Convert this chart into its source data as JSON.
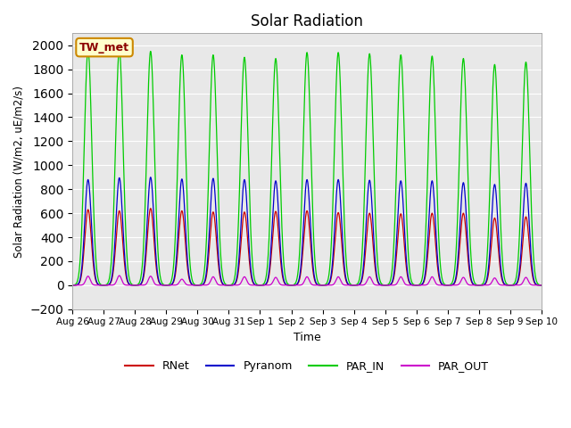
{
  "title": "Solar Radiation",
  "ylabel": "Solar Radiation (W/m2, uE/m2/s)",
  "xlabel": "Time",
  "ylim": [
    -200,
    2100
  ],
  "yticks": [
    -200,
    0,
    200,
    400,
    600,
    800,
    1000,
    1200,
    1400,
    1600,
    1800,
    2000
  ],
  "x_labels": [
    "Aug 26",
    "Aug 27",
    "Aug 28",
    "Aug 29",
    "Aug 30",
    "Aug 31",
    "Sep 1",
    "Sep 2",
    "Sep 3",
    "Sep 4",
    "Sep 5",
    "Sep 6",
    "Sep 7",
    "Sep 8",
    "Sep 9",
    "Sep 10"
  ],
  "num_days": 15,
  "colors": {
    "RNet": "#cc0000",
    "Pyranom": "#0000cc",
    "PAR_IN": "#00cc00",
    "PAR_OUT": "#cc00cc"
  },
  "peaks": {
    "RNet": [
      630,
      620,
      640,
      620,
      610,
      610,
      615,
      620,
      605,
      600,
      595,
      600,
      600,
      560,
      570
    ],
    "Pyranom": [
      880,
      895,
      900,
      885,
      890,
      880,
      870,
      880,
      880,
      875,
      870,
      870,
      855,
      840,
      850
    ],
    "PAR_IN": [
      1960,
      1960,
      1950,
      1920,
      1920,
      1900,
      1890,
      1940,
      1940,
      1930,
      1920,
      1910,
      1890,
      1840,
      1860
    ],
    "PAR_OUT": [
      75,
      80,
      75,
      50,
      70,
      70,
      65,
      70,
      70,
      70,
      70,
      70,
      65,
      60,
      65
    ]
  },
  "background_color": "#e8e8e8",
  "grid_color": "#ffffff",
  "annotation_text": "TW_met",
  "annotation_box_color": "#ffffcc",
  "annotation_box_edge": "#cc8800"
}
